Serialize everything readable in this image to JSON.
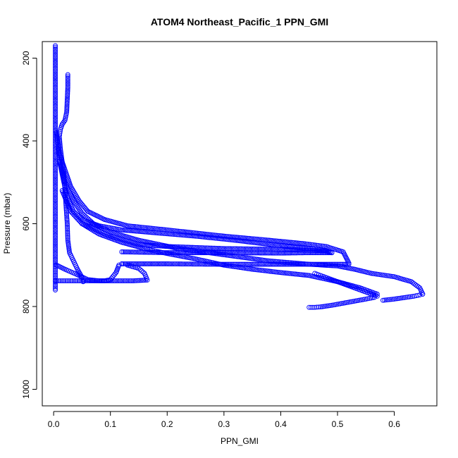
{
  "chart_data": {
    "type": "scatter",
    "title": "ATOM4 Northeast_Pacific_1 PPN_GMI",
    "xlabel": "PPN_GMI",
    "ylabel": "Pressure (mbar)",
    "xlim": [
      -0.02,
      0.675
    ],
    "ylim": [
      1040,
      160
    ],
    "y_reversed": true,
    "grid": false,
    "x_ticks": [
      0.0,
      0.1,
      0.2,
      0.3,
      0.4,
      0.5,
      0.6
    ],
    "x_tick_labels": [
      "0.0",
      "0.1",
      "0.2",
      "0.3",
      "0.4",
      "0.5",
      "0.6"
    ],
    "y_ticks": [
      200,
      400,
      600,
      800,
      1000
    ],
    "y_tick_labels": [
      "200",
      "400",
      "600",
      "800",
      "1000"
    ],
    "marker": "open-circle",
    "color": "#0000ff",
    "series": [
      {
        "points": [
          [
            0.003,
            170
          ],
          [
            0.003,
            250
          ],
          [
            0.003,
            350
          ],
          [
            0.003,
            450
          ],
          [
            0.003,
            550
          ],
          [
            0.003,
            650
          ],
          [
            0.003,
            700
          ],
          [
            0.003,
            740
          ],
          [
            0.003,
            760
          ]
        ]
      },
      {
        "points": [
          [
            0.025,
            240
          ],
          [
            0.025,
            270
          ],
          [
            0.024,
            300
          ],
          [
            0.023,
            330
          ],
          [
            0.02,
            350
          ],
          [
            0.015,
            360
          ],
          [
            0.012,
            372
          ],
          [
            0.01,
            390
          ],
          [
            0.012,
            420
          ],
          [
            0.015,
            450
          ],
          [
            0.018,
            480
          ],
          [
            0.02,
            520
          ],
          [
            0.022,
            560
          ],
          [
            0.024,
            600
          ],
          [
            0.025,
            640
          ],
          [
            0.028,
            670
          ],
          [
            0.035,
            690
          ],
          [
            0.042,
            710
          ],
          [
            0.05,
            730
          ],
          [
            0.052,
            740
          ]
        ]
      },
      {
        "points": [
          [
            0.008,
            420
          ],
          [
            0.012,
            460
          ],
          [
            0.018,
            500
          ],
          [
            0.025,
            540
          ],
          [
            0.035,
            570
          ],
          [
            0.05,
            590
          ],
          [
            0.08,
            605
          ],
          [
            0.12,
            615
          ],
          [
            0.18,
            622
          ],
          [
            0.25,
            630
          ],
          [
            0.32,
            640
          ],
          [
            0.38,
            650
          ],
          [
            0.43,
            658
          ],
          [
            0.47,
            662
          ],
          [
            0.49,
            670
          ]
        ]
      },
      {
        "points": [
          [
            0.005,
            380
          ],
          [
            0.01,
            430
          ],
          [
            0.02,
            470
          ],
          [
            0.03,
            510
          ],
          [
            0.045,
            545
          ],
          [
            0.06,
            570
          ],
          [
            0.09,
            590
          ],
          [
            0.13,
            605
          ],
          [
            0.2,
            615
          ],
          [
            0.3,
            630
          ],
          [
            0.38,
            640
          ],
          [
            0.44,
            648
          ],
          [
            0.48,
            655
          ],
          [
            0.51,
            668
          ],
          [
            0.52,
            695
          ]
        ]
      },
      {
        "points": [
          [
            0.01,
            450
          ],
          [
            0.02,
            500
          ],
          [
            0.035,
            545
          ],
          [
            0.05,
            575
          ],
          [
            0.07,
            600
          ],
          [
            0.1,
            620
          ],
          [
            0.15,
            640
          ],
          [
            0.22,
            660
          ],
          [
            0.3,
            675
          ],
          [
            0.38,
            690
          ],
          [
            0.45,
            698
          ],
          [
            0.5,
            702
          ],
          [
            0.53,
            710
          ],
          [
            0.56,
            720
          ],
          [
            0.6,
            728
          ],
          [
            0.63,
            740
          ],
          [
            0.645,
            755
          ],
          [
            0.65,
            770
          ]
        ]
      },
      {
        "points": [
          [
            0.015,
            520
          ],
          [
            0.03,
            570
          ],
          [
            0.05,
            600
          ],
          [
            0.08,
            625
          ],
          [
            0.12,
            645
          ],
          [
            0.16,
            660
          ],
          [
            0.2,
            672
          ],
          [
            0.25,
            685
          ],
          [
            0.3,
            700
          ],
          [
            0.35,
            710
          ],
          [
            0.4,
            718
          ],
          [
            0.45,
            725
          ],
          [
            0.5,
            740
          ],
          [
            0.54,
            755
          ],
          [
            0.57,
            770
          ]
        ]
      },
      {
        "points": [
          [
            0.05,
            600
          ],
          [
            0.1,
            630
          ],
          [
            0.15,
            650
          ],
          [
            0.2,
            655
          ],
          [
            0.3,
            660
          ],
          [
            0.4,
            662
          ],
          [
            0.45,
            664
          ],
          [
            0.48,
            666
          ],
          [
            0.49,
            670
          ]
        ]
      },
      {
        "points": [
          [
            0.12,
            668
          ],
          [
            0.2,
            670
          ],
          [
            0.3,
            670
          ],
          [
            0.4,
            671
          ],
          [
            0.45,
            670
          ],
          [
            0.49,
            670
          ]
        ]
      },
      {
        "points": [
          [
            0.12,
            697
          ],
          [
            0.2,
            697
          ],
          [
            0.3,
            698
          ],
          [
            0.4,
            698
          ],
          [
            0.5,
            698
          ],
          [
            0.52,
            698
          ]
        ]
      },
      {
        "points": [
          [
            0.003,
            738
          ],
          [
            0.03,
            738
          ],
          [
            0.06,
            738
          ],
          [
            0.09,
            738
          ],
          [
            0.1,
            735
          ],
          [
            0.11,
            718
          ],
          [
            0.115,
            700
          ],
          [
            0.12,
            697
          ]
        ]
      },
      {
        "points": [
          [
            0.005,
            700
          ],
          [
            0.02,
            710
          ],
          [
            0.04,
            722
          ],
          [
            0.06,
            735
          ],
          [
            0.08,
            738
          ],
          [
            0.1,
            738
          ],
          [
            0.14,
            738
          ],
          [
            0.165,
            736
          ],
          [
            0.16,
            720
          ],
          [
            0.15,
            708
          ],
          [
            0.13,
            700
          ]
        ]
      },
      {
        "points": [
          [
            0.45,
            802
          ],
          [
            0.46,
            802
          ],
          [
            0.47,
            801
          ],
          [
            0.49,
            797
          ],
          [
            0.51,
            792
          ],
          [
            0.53,
            787
          ],
          [
            0.55,
            782
          ],
          [
            0.565,
            778
          ],
          [
            0.57,
            775
          ],
          [
            0.55,
            765
          ],
          [
            0.53,
            755
          ],
          [
            0.51,
            745
          ],
          [
            0.49,
            735
          ],
          [
            0.47,
            725
          ],
          [
            0.46,
            720
          ]
        ]
      },
      {
        "points": [
          [
            0.58,
            785
          ],
          [
            0.6,
            782
          ],
          [
            0.62,
            778
          ],
          [
            0.635,
            775
          ],
          [
            0.645,
            772
          ],
          [
            0.65,
            770
          ]
        ]
      }
    ]
  }
}
